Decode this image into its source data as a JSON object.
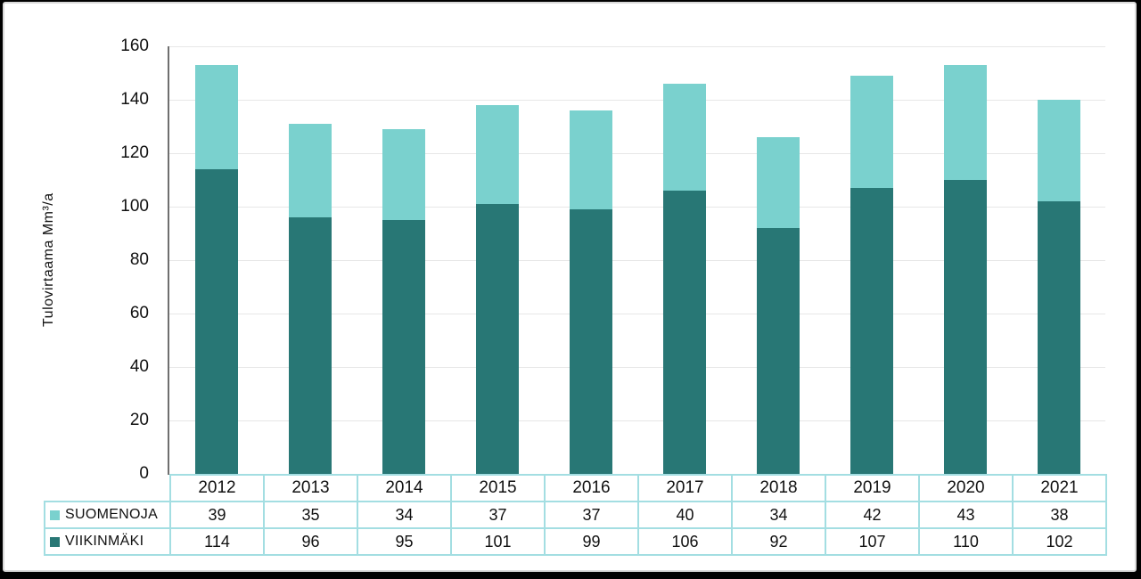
{
  "frame": {
    "background_color": "#000000",
    "card_background": "#FFFFFF",
    "card_border_color": "#D9D9D9"
  },
  "chart_data": {
    "type": "bar",
    "stacked": true,
    "title": "",
    "xlabel": "",
    "ylabel": "Tulovirtaama Mm³/a",
    "ylim": [
      0,
      160
    ],
    "ytick_step": 20,
    "yticks": [
      "160",
      "140",
      "120",
      "100",
      "80",
      "60",
      "40",
      "20",
      "0"
    ],
    "grid": true,
    "legend_position": "data-table-left",
    "has_data_table": true,
    "categories": [
      "2012",
      "2013",
      "2014",
      "2015",
      "2016",
      "2017",
      "2018",
      "2019",
      "2020",
      "2021"
    ],
    "series": [
      {
        "name": "SUOMENOJA",
        "color": "#7AD1CE",
        "stack_order": "top",
        "values": [
          39,
          35,
          34,
          37,
          37,
          40,
          34,
          42,
          43,
          38
        ]
      },
      {
        "name": "VIIKINMÄKI",
        "color": "#287775",
        "stack_order": "bottom",
        "values": [
          114,
          96,
          95,
          101,
          99,
          106,
          92,
          107,
          110,
          102
        ]
      }
    ],
    "colors": {
      "gridline": "#E7E7E7",
      "axis_line": "#6F6F6F",
      "table_border": "#A3DEE2",
      "text": "#111111"
    }
  }
}
